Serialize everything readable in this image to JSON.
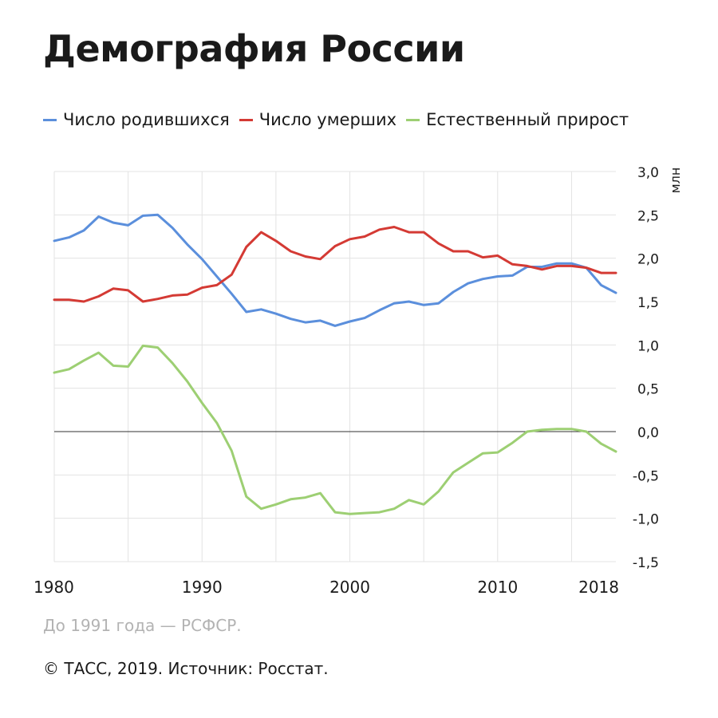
{
  "header": {
    "title": "Демография России"
  },
  "footer": {
    "note": "До 1991 года — РСФСР.",
    "source": "© ТАСС, 2019. Источник: Росстат."
  },
  "chart_data": {
    "type": "line",
    "title": "Демография России",
    "ylabel": "млн",
    "xlabel": "",
    "xlim": [
      1980,
      2018
    ],
    "ylim": [
      -1.5,
      3.0
    ],
    "x_ticks": [
      1980,
      1990,
      2000,
      2010,
      2018
    ],
    "x_tick_labels": [
      "1980",
      "1990",
      "2000",
      "2010",
      "2018"
    ],
    "y_ticks": [
      3.0,
      2.5,
      2.0,
      1.5,
      1.0,
      0.5,
      0.0,
      -0.5,
      -1.0,
      -1.5
    ],
    "y_tick_labels": [
      "3,0",
      "2,5",
      "2,0",
      "1,5",
      "1,0",
      "0,5",
      "0,0",
      "-0,5",
      "-1,0",
      "-1,5"
    ],
    "legend_position": "top-left",
    "grid": true,
    "x": [
      1980,
      1981,
      1982,
      1983,
      1984,
      1985,
      1986,
      1987,
      1988,
      1989,
      1990,
      1991,
      1992,
      1993,
      1994,
      1995,
      1996,
      1997,
      1998,
      1999,
      2000,
      2001,
      2002,
      2003,
      2004,
      2005,
      2006,
      2007,
      2008,
      2009,
      2010,
      2011,
      2012,
      2013,
      2014,
      2015,
      2016,
      2017,
      2018
    ],
    "series": [
      {
        "name": "Число родившихся",
        "color": "#5b8fdc",
        "values": [
          2.2,
          2.24,
          2.32,
          2.48,
          2.41,
          2.38,
          2.49,
          2.5,
          2.35,
          2.16,
          1.99,
          1.79,
          1.59,
          1.38,
          1.41,
          1.36,
          1.3,
          1.26,
          1.28,
          1.22,
          1.27,
          1.31,
          1.4,
          1.48,
          1.5,
          1.46,
          1.48,
          1.61,
          1.71,
          1.76,
          1.79,
          1.8,
          1.9,
          1.9,
          1.94,
          1.94,
          1.89,
          1.69,
          1.6
        ]
      },
      {
        "name": "Число умерших",
        "color": "#d43a34",
        "values": [
          1.52,
          1.52,
          1.5,
          1.56,
          1.65,
          1.63,
          1.5,
          1.53,
          1.57,
          1.58,
          1.66,
          1.69,
          1.81,
          2.13,
          2.3,
          2.2,
          2.08,
          2.02,
          1.99,
          2.14,
          2.22,
          2.25,
          2.33,
          2.36,
          2.3,
          2.3,
          2.17,
          2.08,
          2.08,
          2.01,
          2.03,
          1.93,
          1.91,
          1.87,
          1.91,
          1.91,
          1.89,
          1.83,
          1.83
        ]
      },
      {
        "name": "Естественный прирост",
        "color": "#9dcf73",
        "values": [
          0.68,
          0.72,
          0.82,
          0.91,
          0.76,
          0.75,
          0.99,
          0.97,
          0.79,
          0.58,
          0.33,
          0.1,
          -0.22,
          -0.75,
          -0.89,
          -0.84,
          -0.78,
          -0.76,
          -0.71,
          -0.93,
          -0.95,
          -0.94,
          -0.93,
          -0.89,
          -0.79,
          -0.84,
          -0.69,
          -0.47,
          -0.36,
          -0.25,
          -0.24,
          -0.13,
          -0.0,
          0.02,
          0.03,
          0.03,
          0.0,
          -0.14,
          -0.23
        ]
      }
    ]
  }
}
